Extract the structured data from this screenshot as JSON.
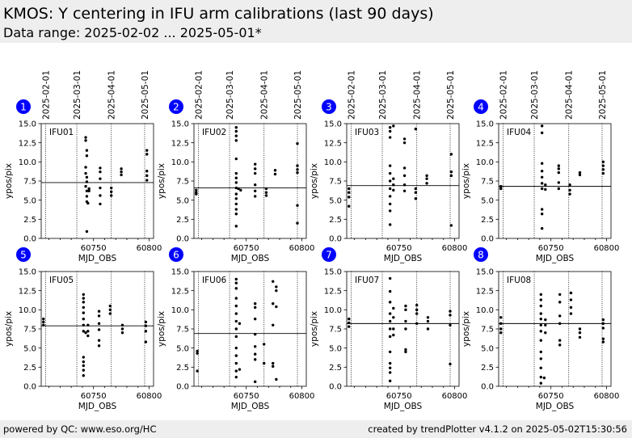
{
  "header": {
    "title": "KMOS: Y centering in IFU arm calibrations (last 90 days)",
    "subtitle": "Data range: 2025-02-02 ... 2025-05-01*"
  },
  "footer": {
    "left": "powered by QC: www.eso.org/HC",
    "right": "created by trendPlotter v4.1.2 on 2025-05-02T15:30:56"
  },
  "colors": {
    "points": "#000000",
    "marker": "#0000ff",
    "background": "#eeeeee"
  },
  "chart_data": {
    "type": "scatter",
    "xlabel": "MJD_OBS",
    "ylabel": "ypos/pix",
    "xlim": [
      60703,
      60804
    ],
    "ylim": [
      0,
      15
    ],
    "xticks": [
      60750,
      60800
    ],
    "yticks": [
      0.0,
      2.5,
      5.0,
      7.5,
      10.0,
      12.5,
      15.0
    ],
    "date_markers": [
      {
        "label": "2025-02-01",
        "mjd": 60707
      },
      {
        "label": "2025-03-01",
        "mjd": 60735
      },
      {
        "label": "2025-04-01",
        "mjd": 60766
      },
      {
        "label": "2025-05-01",
        "mjd": 60796
      }
    ],
    "panels": [
      {
        "num": "1",
        "name": "IFU01",
        "ref": 7.3,
        "points": [
          [
            60743,
            13.2
          ],
          [
            60743,
            12.8
          ],
          [
            60744,
            11.5
          ],
          [
            60744,
            10.8
          ],
          [
            60743,
            9.3
          ],
          [
            60743,
            8.5
          ],
          [
            60744,
            8.0
          ],
          [
            60744,
            7.4
          ],
          [
            60743,
            6.8
          ],
          [
            60744,
            6.2
          ],
          [
            60744,
            5.5
          ],
          [
            60744,
            4.8
          ],
          [
            60745,
            4.6
          ],
          [
            60746,
            6.5
          ],
          [
            60746,
            6.2
          ],
          [
            60744,
            0.9
          ],
          [
            60756,
            9.2
          ],
          [
            60756,
            8.7
          ],
          [
            60756,
            7.8
          ],
          [
            60756,
            6.6
          ],
          [
            60756,
            5.6
          ],
          [
            60756,
            4.5
          ],
          [
            60766,
            6.6
          ],
          [
            60766,
            6.1
          ],
          [
            60766,
            5.6
          ],
          [
            60775,
            9.1
          ],
          [
            60775,
            8.7
          ],
          [
            60775,
            8.3
          ],
          [
            60798,
            11.5
          ],
          [
            60798,
            11.0
          ],
          [
            60798,
            8.8
          ],
          [
            60798,
            8.2
          ],
          [
            60798,
            7.6
          ]
        ]
      },
      {
        "num": "2",
        "name": "IFU02",
        "ref": 6.6,
        "points": [
          [
            60705,
            6.3
          ],
          [
            60705,
            6.0
          ],
          [
            60705,
            5.8
          ],
          [
            60741,
            14.5
          ],
          [
            60741,
            14.0
          ],
          [
            60741,
            13.4
          ],
          [
            60741,
            12.8
          ],
          [
            60741,
            10.4
          ],
          [
            60741,
            8.5
          ],
          [
            60741,
            7.9
          ],
          [
            60741,
            7.3
          ],
          [
            60741,
            6.6
          ],
          [
            60741,
            5.8
          ],
          [
            60741,
            5.2
          ],
          [
            60741,
            4.5
          ],
          [
            60741,
            3.8
          ],
          [
            60741,
            3.2
          ],
          [
            60741,
            1.6
          ],
          [
            60743,
            6.5
          ],
          [
            60745,
            6.3
          ],
          [
            60758,
            9.7
          ],
          [
            60758,
            9.1
          ],
          [
            60758,
            8.5
          ],
          [
            60758,
            7.0
          ],
          [
            60758,
            6.2
          ],
          [
            60758,
            5.5
          ],
          [
            60768,
            6.5
          ],
          [
            60768,
            6.0
          ],
          [
            60768,
            5.6
          ],
          [
            60776,
            8.9
          ],
          [
            60776,
            8.4
          ],
          [
            60796,
            12.4
          ],
          [
            60796,
            9.5
          ],
          [
            60796,
            9.0
          ],
          [
            60796,
            8.6
          ],
          [
            60796,
            4.3
          ],
          [
            60796,
            2.0
          ]
        ]
      },
      {
        "num": "3",
        "name": "IFU03",
        "ref": 6.9,
        "points": [
          [
            60705,
            6.5
          ],
          [
            60705,
            6.0
          ],
          [
            60705,
            5.4
          ],
          [
            60705,
            4.2
          ],
          [
            60742,
            14.5
          ],
          [
            60742,
            14.0
          ],
          [
            60742,
            13.2
          ],
          [
            60742,
            9.5
          ],
          [
            60742,
            8.5
          ],
          [
            60742,
            7.5
          ],
          [
            60742,
            6.5
          ],
          [
            60742,
            5.5
          ],
          [
            60742,
            4.5
          ],
          [
            60742,
            3.6
          ],
          [
            60742,
            1.8
          ],
          [
            60745,
            14.7
          ],
          [
            60745,
            7.8
          ],
          [
            60745,
            7.0
          ],
          [
            60745,
            6.3
          ],
          [
            60755,
            13.0
          ],
          [
            60755,
            12.5
          ],
          [
            60755,
            9.2
          ],
          [
            60755,
            8.2
          ],
          [
            60755,
            7.0
          ],
          [
            60755,
            6.2
          ],
          [
            60765,
            14.3
          ],
          [
            60765,
            6.5
          ],
          [
            60765,
            6.0
          ],
          [
            60765,
            5.2
          ],
          [
            60775,
            8.2
          ],
          [
            60775,
            7.8
          ],
          [
            60775,
            7.2
          ],
          [
            60797,
            11.0
          ],
          [
            60797,
            8.7
          ],
          [
            60797,
            8.2
          ],
          [
            60797,
            1.7
          ]
        ]
      },
      {
        "num": "4",
        "name": "IFU04",
        "ref": 6.8,
        "points": [
          [
            60705,
            6.8
          ],
          [
            60705,
            6.5
          ],
          [
            60742,
            14.7
          ],
          [
            60742,
            13.8
          ],
          [
            60742,
            9.8
          ],
          [
            60742,
            8.8
          ],
          [
            60742,
            8.0
          ],
          [
            60742,
            7.2
          ],
          [
            60742,
            6.5
          ],
          [
            60742,
            3.8
          ],
          [
            60742,
            3.2
          ],
          [
            60742,
            1.3
          ],
          [
            60745,
            7.0
          ],
          [
            60745,
            6.4
          ],
          [
            60757,
            9.5
          ],
          [
            60757,
            9.1
          ],
          [
            60757,
            8.6
          ],
          [
            60757,
            7.3
          ],
          [
            60757,
            6.5
          ],
          [
            60767,
            7.0
          ],
          [
            60767,
            6.3
          ],
          [
            60767,
            5.8
          ],
          [
            60776,
            8.6
          ],
          [
            60776,
            8.3
          ],
          [
            60797,
            10.0
          ],
          [
            60797,
            9.5
          ],
          [
            60797,
            9.0
          ],
          [
            60797,
            8.5
          ]
        ]
      },
      {
        "num": "5",
        "name": "IFU05",
        "ref": 7.9,
        "points": [
          [
            60705,
            8.8
          ],
          [
            60705,
            8.4
          ],
          [
            60705,
            8.0
          ],
          [
            60741,
            12.0
          ],
          [
            60741,
            11.5
          ],
          [
            60741,
            11.0
          ],
          [
            60741,
            10.3
          ],
          [
            60741,
            9.6
          ],
          [
            60741,
            8.8
          ],
          [
            60741,
            8.0
          ],
          [
            60741,
            7.2
          ],
          [
            60741,
            3.8
          ],
          [
            60741,
            3.2
          ],
          [
            60741,
            2.7
          ],
          [
            60741,
            2.1
          ],
          [
            60741,
            1.4
          ],
          [
            60743,
            7.0
          ],
          [
            60745,
            8.0
          ],
          [
            60745,
            7.2
          ],
          [
            60745,
            6.6
          ],
          [
            60755,
            9.8
          ],
          [
            60755,
            9.2
          ],
          [
            60755,
            8.2
          ],
          [
            60755,
            7.4
          ],
          [
            60755,
            6.0
          ],
          [
            60755,
            5.3
          ],
          [
            60765,
            10.5
          ],
          [
            60765,
            10.0
          ],
          [
            60765,
            9.5
          ],
          [
            60776,
            8.0
          ],
          [
            60776,
            7.5
          ],
          [
            60776,
            7.0
          ],
          [
            60797,
            8.4
          ],
          [
            60797,
            7.9
          ],
          [
            60797,
            7.2
          ],
          [
            60797,
            5.8
          ]
        ]
      },
      {
        "num": "6",
        "name": "IFU06",
        "ref": 6.9,
        "points": [
          [
            60706,
            4.6
          ],
          [
            60706,
            4.3
          ],
          [
            60706,
            2.0
          ],
          [
            60741,
            14.0
          ],
          [
            60741,
            13.5
          ],
          [
            60741,
            12.8
          ],
          [
            60741,
            11.5
          ],
          [
            60741,
            10.5
          ],
          [
            60741,
            9.5
          ],
          [
            60741,
            8.5
          ],
          [
            60741,
            7.5
          ],
          [
            60741,
            6.5
          ],
          [
            60741,
            5.0
          ],
          [
            60741,
            4.0
          ],
          [
            60741,
            3.0
          ],
          [
            60741,
            2.0
          ],
          [
            60741,
            1.2
          ],
          [
            60744,
            8.2
          ],
          [
            60744,
            2.2
          ],
          [
            60758,
            10.8
          ],
          [
            60758,
            10.3
          ],
          [
            60758,
            8.8
          ],
          [
            60758,
            6.8
          ],
          [
            60758,
            5.2
          ],
          [
            60758,
            4.2
          ],
          [
            60758,
            3.5
          ],
          [
            60758,
            0.6
          ],
          [
            60766,
            5.5
          ],
          [
            60766,
            3.0
          ],
          [
            60774,
            13.7
          ],
          [
            60774,
            10.8
          ],
          [
            60774,
            8.0
          ],
          [
            60774,
            3.0
          ],
          [
            60774,
            2.6
          ],
          [
            60777,
            13.0
          ],
          [
            60777,
            12.5
          ],
          [
            60777,
            10.4
          ],
          [
            60777,
            0.9
          ]
        ]
      },
      {
        "num": "7",
        "name": "IFU07",
        "ref": 8.2,
        "points": [
          [
            60705,
            8.8
          ],
          [
            60705,
            8.3
          ],
          [
            60705,
            7.8
          ],
          [
            60742,
            14.1
          ],
          [
            60742,
            12.4
          ],
          [
            60742,
            11.0
          ],
          [
            60742,
            9.5
          ],
          [
            60742,
            8.5
          ],
          [
            60742,
            7.5
          ],
          [
            60742,
            6.5
          ],
          [
            60742,
            4.5
          ],
          [
            60742,
            3.0
          ],
          [
            60742,
            2.4
          ],
          [
            60742,
            1.8
          ],
          [
            60742,
            0.7
          ],
          [
            60745,
            10.2
          ],
          [
            60745,
            9.0
          ],
          [
            60745,
            7.5
          ],
          [
            60745,
            6.7
          ],
          [
            60756,
            10.5
          ],
          [
            60756,
            10.0
          ],
          [
            60756,
            8.5
          ],
          [
            60756,
            7.5
          ],
          [
            60756,
            4.8
          ],
          [
            60756,
            4.5
          ],
          [
            60766,
            10.6
          ],
          [
            60766,
            10.0
          ],
          [
            60766,
            9.5
          ],
          [
            60766,
            8.2
          ],
          [
            60776,
            9.0
          ],
          [
            60776,
            8.5
          ],
          [
            60776,
            7.5
          ],
          [
            60796,
            9.8
          ],
          [
            60796,
            9.3
          ],
          [
            60796,
            8.0
          ],
          [
            60796,
            2.9
          ]
        ]
      },
      {
        "num": "8",
        "name": "IFU08",
        "ref": 8.2,
        "points": [
          [
            60705,
            9.0
          ],
          [
            60705,
            8.2
          ],
          [
            60705,
            7.5
          ],
          [
            60705,
            7.0
          ],
          [
            60741,
            12.0
          ],
          [
            60741,
            11.3
          ],
          [
            60741,
            10.5
          ],
          [
            60741,
            9.5
          ],
          [
            60741,
            8.8
          ],
          [
            60741,
            8.0
          ],
          [
            60741,
            7.2
          ],
          [
            60741,
            6.0
          ],
          [
            60741,
            4.5
          ],
          [
            60741,
            3.6
          ],
          [
            60741,
            2.4
          ],
          [
            60741,
            1.2
          ],
          [
            60741,
            0.4
          ],
          [
            60744,
            1.1
          ],
          [
            60745,
            8.7
          ],
          [
            60745,
            8.0
          ],
          [
            60745,
            7.0
          ],
          [
            60758,
            12.0
          ],
          [
            60758,
            11.0
          ],
          [
            60758,
            9.2
          ],
          [
            60758,
            8.2
          ],
          [
            60758,
            6.0
          ],
          [
            60758,
            5.4
          ],
          [
            60768,
            12.2
          ],
          [
            60768,
            11.3
          ],
          [
            60768,
            10.3
          ],
          [
            60768,
            9.5
          ],
          [
            60776,
            7.5
          ],
          [
            60776,
            7.0
          ],
          [
            60776,
            6.4
          ],
          [
            60797,
            8.7
          ],
          [
            60797,
            8.2
          ],
          [
            60797,
            7.6
          ],
          [
            60797,
            6.2
          ],
          [
            60797,
            5.8
          ]
        ]
      }
    ]
  }
}
